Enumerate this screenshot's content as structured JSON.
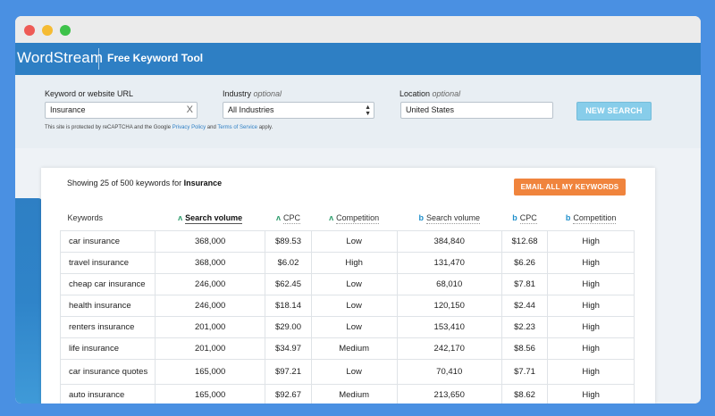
{
  "app": {
    "brand": "WordStream",
    "tool_title": "Free Keyword Tool"
  },
  "search": {
    "keyword_label": "Keyword or website URL",
    "keyword_value": "Insurance",
    "keyword_clear": "X",
    "industry_label": "Industry",
    "industry_optional": "optional",
    "industry_value": "All Industries",
    "location_label": "Location",
    "location_optional": "optional",
    "location_value": "United States",
    "new_search_label": "NEW SEARCH",
    "recaptcha_prefix": "This site is protected by reCAPTCHA and the Google",
    "privacy_link": "Privacy Policy",
    "recaptcha_and": "and",
    "terms_link": "Terms of Service",
    "recaptcha_suffix": "apply."
  },
  "results": {
    "showing_text": "Showing 25 of 500 keywords for",
    "showing_keyword": "Insurance",
    "email_button": "EMAIL ALL MY KEYWORDS",
    "columns": [
      "Keywords",
      "Search volume",
      "CPC",
      "Competition",
      "Search volume",
      "CPC",
      "Competition"
    ],
    "column_sources": [
      "none",
      "google",
      "google",
      "google",
      "bing",
      "bing",
      "bing"
    ],
    "rows": [
      [
        "car insurance",
        "368,000",
        "$89.53",
        "Low",
        "384,840",
        "$12.68",
        "High"
      ],
      [
        "travel insurance",
        "368,000",
        "$6.02",
        "High",
        "131,470",
        "$6.26",
        "High"
      ],
      [
        "cheap car insurance",
        "246,000",
        "$62.45",
        "Low",
        "68,010",
        "$7.81",
        "High"
      ],
      [
        "health insurance",
        "246,000",
        "$18.14",
        "Low",
        "120,150",
        "$2.44",
        "High"
      ],
      [
        "renters insurance",
        "201,000",
        "$29.00",
        "Low",
        "153,410",
        "$2.23",
        "High"
      ],
      [
        "life insurance",
        "201,000",
        "$34.97",
        "Medium",
        "242,170",
        "$8.56",
        "High"
      ],
      [
        "car insurance quotes",
        "165,000",
        "$97.21",
        "Low",
        "70,410",
        "$7.71",
        "High"
      ],
      [
        "auto insurance",
        "165,000",
        "$92.67",
        "Medium",
        "213,650",
        "$8.62",
        "High"
      ]
    ]
  },
  "colors": {
    "background": "#4a90e2",
    "appbar": "#2e7fc4",
    "new_search_button": "#87cdea",
    "email_button": "#f0843d",
    "google_icon": "#2a9b6a",
    "bing_icon": "#1e8fcb"
  },
  "icons": {
    "google": "google-ads-icon",
    "bing": "bing-icon",
    "clear": "close-icon",
    "select": "select-arrows-icon"
  }
}
